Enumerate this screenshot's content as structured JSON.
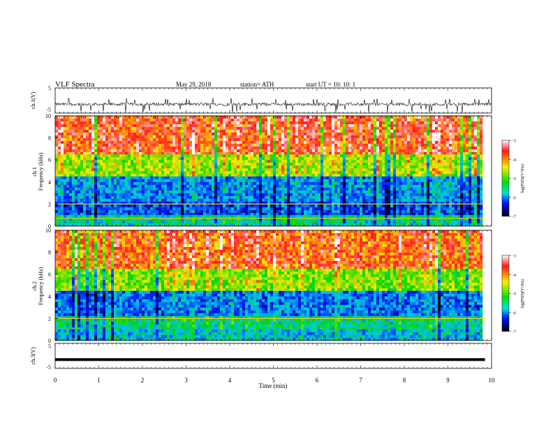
{
  "header": {
    "title": "VLF  Spectra",
    "date": "May 29, 2018",
    "station": "station= ATH",
    "start": "start  UT  =    10: 10: 1"
  },
  "colorbar": {
    "label": "log(PSD)(V²/Hz)",
    "ticks": [
      "-3",
      "-4",
      "-5",
      "-6",
      "-7"
    ],
    "colors": [
      "#ffffff",
      "#ff1a1a",
      "#ffee00",
      "#00e000",
      "#00e0e0",
      "#0018ff",
      "#00006a",
      "#000000"
    ]
  },
  "chart_data": [
    {
      "type": "line",
      "name": "ch1-waveform",
      "ylabel": "ch.1(V)",
      "yticks": [
        "5",
        "-5"
      ],
      "ylim": [
        -5,
        5
      ],
      "xlim": [
        0,
        10
      ],
      "baseline_v": -1.5,
      "envelope_v": [
        -4.9,
        1.0
      ]
    },
    {
      "type": "heatmap",
      "name": "ch1-spectrogram",
      "ylabel": "ch.1\nFrequency  (kHz)",
      "yticks": [
        "10",
        "8",
        "6",
        "4",
        "2",
        "0"
      ],
      "ylim": [
        0,
        10
      ],
      "xlim": [
        0,
        9.85
      ],
      "value_label": "log(PSD)(V²/Hz)",
      "value_range": [
        -7,
        -3
      ],
      "bands_khz": [
        {
          "from": 6.5,
          "to": 10,
          "log_psd": -3.6
        },
        {
          "from": 4.5,
          "to": 6.5,
          "log_psd": -4.5
        },
        {
          "from": 2.2,
          "to": 4.5,
          "log_psd": -5.8
        },
        {
          "from": 1.0,
          "to": 2.2,
          "log_psd": -6.1
        },
        {
          "from": 0,
          "to": 1.0,
          "log_psd": -5.4
        }
      ],
      "lines_khz": [
        0.7,
        2.0
      ]
    },
    {
      "type": "heatmap",
      "name": "ch2-spectrogram",
      "ylabel": "ch.2\nFrequency  (kHz)",
      "yticks": [
        "10",
        "8",
        "6",
        "4",
        "2",
        "0"
      ],
      "ylim": [
        0,
        10
      ],
      "xlim": [
        0,
        9.85
      ],
      "value_label": "log(PSD)(V²/Hz)",
      "value_range": [
        -7,
        -3
      ],
      "bands_khz": [
        {
          "from": 6.5,
          "to": 10,
          "log_psd": -3.7
        },
        {
          "from": 4.5,
          "to": 6.5,
          "log_psd": -4.6
        },
        {
          "from": 2.2,
          "to": 4.5,
          "log_psd": -5.9
        },
        {
          "from": 1.0,
          "to": 2.2,
          "log_psd": -5.3
        },
        {
          "from": 0,
          "to": 1.0,
          "log_psd": -5.6
        }
      ],
      "lines_khz": [
        2.0
      ]
    },
    {
      "type": "line",
      "name": "ch3-waveform",
      "ylabel": "ch.3(V)",
      "yticks": [
        "5",
        "-5"
      ],
      "ylim": [
        -5,
        5
      ],
      "xlim": [
        0,
        9.85
      ],
      "baseline_v": -1.5,
      "xlabel": "Time  (min)",
      "xticks": [
        "0",
        "1",
        "2",
        "3",
        "4",
        "5",
        "6",
        "7",
        "8",
        "9",
        "10"
      ],
      "xrange": [
        0,
        10
      ]
    }
  ]
}
